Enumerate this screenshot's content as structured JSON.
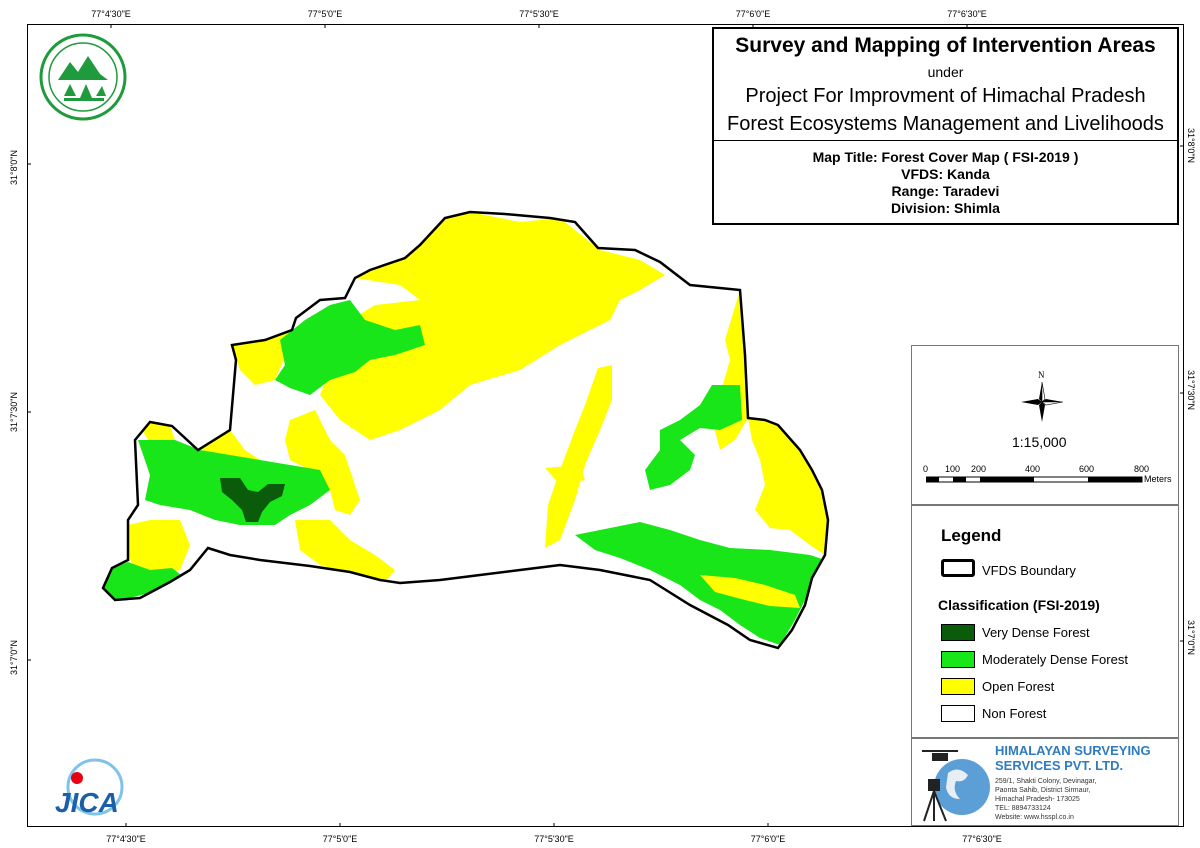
{
  "title_block": {
    "main_title": "Survey and Mapping of Intervention Areas",
    "under": "under",
    "project_line1": "Project For Improvment of Himachal Pradesh",
    "project_line2": "Forest Ecosystems Management and Livelihoods",
    "map_title": "Map Title: Forest Cover Map ( FSI-2019 )",
    "vfds": "VFDS: Kanda",
    "range": "Range: Taradevi",
    "division": "Division: Shimla"
  },
  "graticule": {
    "top": [
      "77°4'30\"E",
      "77°5'0\"E",
      "77°5'30\"E",
      "77°6'0\"E",
      "77°6'30\"E"
    ],
    "bottom": [
      "77°4'30\"E",
      "77°5'0\"E",
      "77°5'30\"E",
      "77°6'0\"E",
      "77°6'30\"E"
    ],
    "left": [
      "31°8'0\"N",
      "31°7'30\"N",
      "31°7'0\"N"
    ],
    "right": [
      "31°8'0\"N",
      "31°7'30\"N",
      "31°7'0\"N"
    ]
  },
  "north_arrow": {
    "label": "N"
  },
  "scale": {
    "ratio": "1:15,000",
    "ticks": [
      "0",
      "100",
      "200",
      "400",
      "600",
      "800"
    ],
    "unit": "Meters"
  },
  "legend": {
    "title": "Legend",
    "boundary_label": "VFDS Boundary",
    "classification_title": "Classification (FSI-2019)",
    "classes": [
      {
        "label": "Very Dense Forest",
        "color": "#0a5c0a"
      },
      {
        "label": "Moderately Dense Forest",
        "color": "#19e619"
      },
      {
        "label": "Open Forest",
        "color": "#ffff00"
      },
      {
        "label": "Non Forest",
        "color": "#ffffff"
      }
    ]
  },
  "company": {
    "name_line1": "HIMALAYAN SURVEYING",
    "name_line2": "SERVICES PVT. LTD.",
    "address": [
      "259/1, Shakti Colony, Devinagar,",
      "Paonta Sahib, District Sirmaur,",
      "Himachal Pradesh- 173025",
      "TEL: 8894733124",
      "Website: www.hsspl.co.in"
    ]
  },
  "logos": {
    "forest_dept": "forest-department-emblem",
    "jica": "JICA"
  }
}
